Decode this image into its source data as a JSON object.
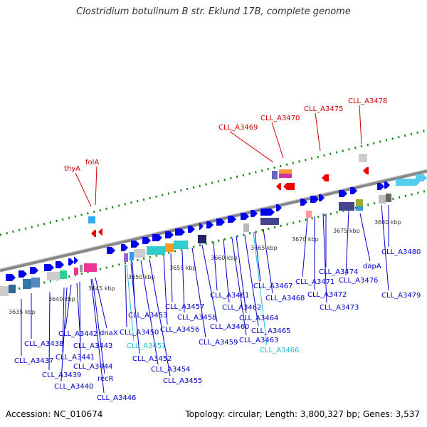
{
  "title": "Clostridium botulinum B str. Eklund 17B, complete genome",
  "footer": {
    "accession": "Accession: NC_010674",
    "summary": "Topology: circular; Length: 3,800,327 bp; Genes: 3,537"
  },
  "colors": {
    "backbone": "#888888",
    "forward_gene": "#0000ee",
    "reverse_gene": "#ee0000",
    "label_blue": "#0000cc",
    "label_red": "#cc0000",
    "label_cyan": "#22bbdd",
    "rna_ticks": "#118811"
  },
  "kbp_ticks": [
    "3635 kbp",
    "3640 kbp",
    "3645 kbp",
    "3650 kbp",
    "3655 kbp",
    "3660 kbp",
    "3665 kbp",
    "3670 kbp",
    "3675 kbp",
    "3680 kbp"
  ],
  "red_labels": [
    "thyA",
    "folA",
    "CLL_A3469",
    "CLL_A3470",
    "CLL_A3475",
    "CLL_A3478"
  ],
  "blue_labels": [
    "CLL_A3437",
    "CLL_A3438",
    "CLL_A3439",
    "CLL_A3440",
    "CLL_A3441",
    "CLL_A3442",
    "CLL_A3443",
    "CLL_A3444",
    "recR",
    "dnaX",
    "CLL_A3446",
    "CLL_A3450",
    "CLL_A3451",
    "CLL_A3452",
    "CLL_A3453",
    "CLL_A3454",
    "CLL_A3455",
    "CLL_A3456",
    "CLL_A3457",
    "CLL_A3458",
    "CLL_A3459",
    "CLL_A3460",
    "CLL_A3461",
    "CLL_A3462",
    "CLL_A3463",
    "CLL_A3464",
    "CLL_A3465",
    "CLL_A3466",
    "CLL_A3467",
    "CLL_A3468",
    "CLL_A3471",
    "CLL_A3472",
    "CLL_A3473",
    "CLL_A3474",
    "dapA",
    "CLL_A3476",
    "CLL_A3479",
    "CLL_A3480"
  ]
}
